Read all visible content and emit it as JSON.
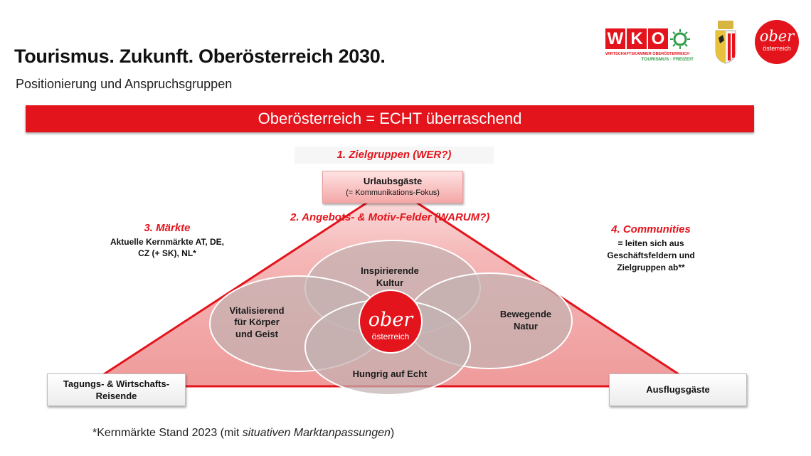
{
  "header": {
    "title": "Tourismus. Zukunft. Oberösterreich 2030.",
    "subtitle": "Positionierung und Anspruchsgruppen",
    "logos": {
      "wko_letters": [
        "W",
        "K",
        "O"
      ],
      "wko_line1": "WIRTSCHAFTSKAMMER OBERÖSTERREICH",
      "wko_line2": "TOURISMUS · FREIZEIT",
      "ober_main": "ober",
      "ober_sub": "österreich"
    }
  },
  "banner": "Oberösterreich = ECHT überraschend",
  "zielgruppen": {
    "heading": "1. Zielgruppen (WER?)",
    "top_box": {
      "line1": "Urlaubsgäste",
      "line2": "(= Kommunikations-Fokus)"
    },
    "left_box": {
      "line1": "Tagungs- & Wirtschafts-",
      "line2": "Reisende"
    },
    "right_box": "Ausflugsgäste"
  },
  "angebot": {
    "heading": "2. Angebots- & Motiv-Felder (WARUM?)",
    "fields": {
      "top": [
        "Inspirierende",
        "Kultur"
      ],
      "left": [
        "Vitalisierend",
        "für Körper",
        "und Geist"
      ],
      "right": [
        "Bewegende",
        "Natur"
      ],
      "bottom": [
        "Hungrig auf Echt"
      ]
    },
    "center_logo": {
      "main": "ober",
      "sub": "österreich"
    }
  },
  "maerkte": {
    "heading": "3. Märkte",
    "lines": [
      "Aktuelle Kernmärkte AT, DE,",
      "CZ (+ SK), NL*"
    ]
  },
  "communities": {
    "heading": "4. Communities",
    "lines": [
      "= leiten sich aus",
      "Geschäftsfeldern und",
      "Zielgruppen ab**"
    ]
  },
  "footnote": {
    "prefix": "*Kernmärkte Stand 2023 (mit ",
    "italic": "situativen Marktanpassungen",
    "suffix": ")"
  },
  "colors": {
    "accent": "#e3141c",
    "triangle": "#f0a0a0",
    "circle_fill": "#c9b6b6"
  }
}
